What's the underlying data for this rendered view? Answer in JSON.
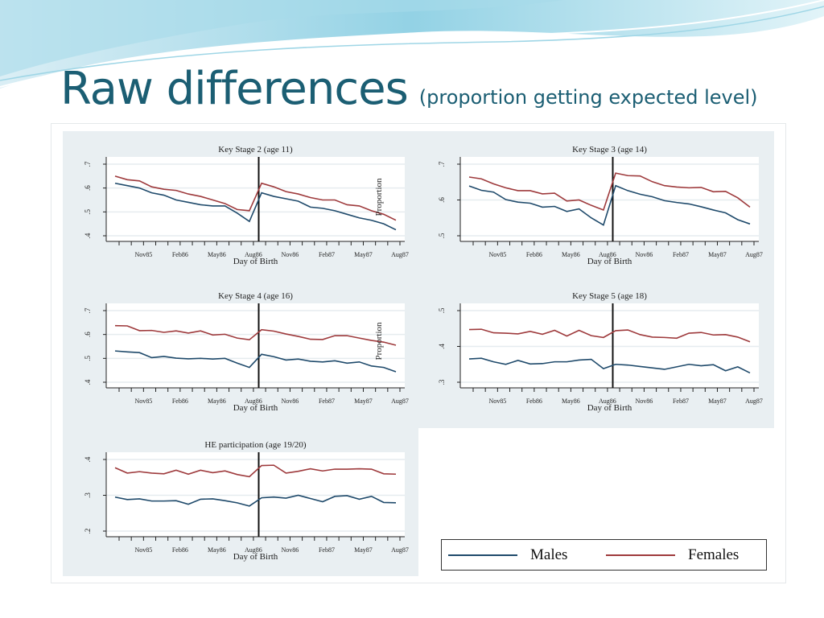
{
  "slide": {
    "title": "Raw differences",
    "subtitle": "(proportion getting expected level)"
  },
  "legend": {
    "males": "Males",
    "females": "Females"
  },
  "colors": {
    "males": "#1f4a6b",
    "females": "#9e3a3c",
    "title": "#1b5e73",
    "panel": "#e9eff2"
  },
  "chart_data": [
    {
      "type": "line",
      "title": "Key Stage 2 (age 11)",
      "xlabel": "Day of Birth",
      "stray_label": "Proportion",
      "x": [
        "Sep85",
        "Oct85",
        "Nov85",
        "Dec85",
        "Jan86",
        "Feb86",
        "Mar86",
        "Apr86",
        "May86",
        "Jun86",
        "Jul86",
        "Aug86",
        "Sep86",
        "Oct86",
        "Nov86",
        "Dec86",
        "Jan87",
        "Feb87",
        "Mar87",
        "Apr87",
        "May87",
        "Jun87",
        "Jul87",
        "Aug87"
      ],
      "xticklabels": [
        "Nov85",
        "Feb86",
        "May86",
        "Aug86",
        "Nov86",
        "Feb87",
        "May87",
        "Aug87"
      ],
      "yticks": [
        0.4,
        0.5,
        0.6,
        0.7
      ],
      "yticklabels": [
        ".4",
        ".5",
        ".6",
        ".7"
      ],
      "ylim": [
        0.4,
        0.7
      ],
      "cutoff": "between Aug86 and Sep86",
      "series": [
        {
          "name": "Males",
          "values": [
            0.62,
            0.61,
            0.6,
            0.58,
            0.57,
            0.55,
            0.54,
            0.53,
            0.525,
            0.525,
            0.495,
            0.46,
            0.58,
            0.565,
            0.555,
            0.545,
            0.52,
            0.515,
            0.505,
            0.49,
            0.475,
            0.465,
            0.45,
            0.425
          ]
        },
        {
          "name": "Females",
          "values": [
            0.65,
            0.635,
            0.63,
            0.605,
            0.595,
            0.59,
            0.575,
            0.565,
            0.55,
            0.535,
            0.51,
            0.505,
            0.62,
            0.605,
            0.585,
            0.575,
            0.56,
            0.55,
            0.55,
            0.53,
            0.525,
            0.505,
            0.49,
            0.465
          ]
        }
      ]
    },
    {
      "type": "line",
      "title": "Key Stage 3 (age 14)",
      "xlabel": "Day of Birth",
      "stray_label": "",
      "x": [
        "Sep85",
        "Oct85",
        "Nov85",
        "Dec85",
        "Jan86",
        "Feb86",
        "Mar86",
        "Apr86",
        "May86",
        "Jun86",
        "Jul86",
        "Aug86",
        "Sep86",
        "Oct86",
        "Nov86",
        "Dec86",
        "Jan87",
        "Feb87",
        "Mar87",
        "Apr87",
        "May87",
        "Jun87",
        "Jul87",
        "Aug87"
      ],
      "xticklabels": [
        "Nov85",
        "Feb86",
        "May86",
        "Aug86",
        "Nov86",
        "Feb87",
        "May87",
        "Aug87"
      ],
      "yticks": [
        0.5,
        0.6,
        0.7
      ],
      "yticklabels": [
        ".5",
        ".6",
        ".7"
      ],
      "ylim": [
        0.5,
        0.7
      ],
      "cutoff": "between Aug86 and Sep86",
      "series": [
        {
          "name": "Males",
          "values": [
            0.639,
            0.627,
            0.622,
            0.601,
            0.594,
            0.591,
            0.58,
            0.582,
            0.568,
            0.575,
            0.55,
            0.53,
            0.64,
            0.626,
            0.616,
            0.609,
            0.598,
            0.593,
            0.589,
            0.581,
            0.572,
            0.564,
            0.545,
            0.533
          ]
        },
        {
          "name": "Females",
          "values": [
            0.664,
            0.659,
            0.645,
            0.634,
            0.626,
            0.626,
            0.617,
            0.619,
            0.597,
            0.6,
            0.585,
            0.572,
            0.675,
            0.668,
            0.667,
            0.651,
            0.64,
            0.636,
            0.634,
            0.635,
            0.623,
            0.624,
            0.606,
            0.58
          ]
        }
      ]
    },
    {
      "type": "line",
      "title": "Key Stage 4 (age 16)",
      "xlabel": "Day of Birth",
      "stray_label": "Proportion",
      "x": [
        "Sep85",
        "Oct85",
        "Nov85",
        "Dec85",
        "Jan86",
        "Feb86",
        "Mar86",
        "Apr86",
        "May86",
        "Jun86",
        "Jul86",
        "Aug86",
        "Sep86",
        "Oct86",
        "Nov86",
        "Dec86",
        "Jan87",
        "Feb87",
        "Mar87",
        "Apr87",
        "May87",
        "Jun87",
        "Jul87",
        "Aug87"
      ],
      "xticklabels": [
        "Nov85",
        "Feb86",
        "May86",
        "Aug86",
        "Nov86",
        "Feb87",
        "May87",
        "Aug87"
      ],
      "yticks": [
        0.4,
        0.5,
        0.6,
        0.7
      ],
      "yticklabels": [
        ".4",
        ".5",
        ".6",
        ".7"
      ],
      "ylim": [
        0.4,
        0.7
      ],
      "cutoff": "between Aug86 and Sep86",
      "series": [
        {
          "name": "Males",
          "values": [
            0.531,
            0.527,
            0.524,
            0.503,
            0.508,
            0.501,
            0.498,
            0.5,
            0.497,
            0.5,
            0.48,
            0.462,
            0.517,
            0.507,
            0.493,
            0.497,
            0.488,
            0.485,
            0.49,
            0.48,
            0.485,
            0.468,
            0.462,
            0.444
          ]
        },
        {
          "name": "Females",
          "values": [
            0.637,
            0.636,
            0.616,
            0.617,
            0.609,
            0.615,
            0.606,
            0.615,
            0.598,
            0.601,
            0.585,
            0.578,
            0.62,
            0.614,
            0.602,
            0.592,
            0.58,
            0.579,
            0.595,
            0.595,
            0.585,
            0.575,
            0.568,
            0.555
          ]
        }
      ]
    },
    {
      "type": "line",
      "title": "Key Stage 5 (age 18)",
      "xlabel": "Day of Birth",
      "stray_label": "",
      "x": [
        "Sep85",
        "Oct85",
        "Nov85",
        "Dec85",
        "Jan86",
        "Feb86",
        "Mar86",
        "Apr86",
        "May86",
        "Jun86",
        "Jul86",
        "Aug86",
        "Sep86",
        "Oct86",
        "Nov86",
        "Dec86",
        "Jan87",
        "Feb87",
        "Mar87",
        "Apr87",
        "May87",
        "Jun87",
        "Jul87",
        "Aug87"
      ],
      "xticklabels": [
        "Nov85",
        "Feb86",
        "May86",
        "Aug86",
        "Nov86",
        "Feb87",
        "May87",
        "Aug87"
      ],
      "yticks": [
        0.3,
        0.4,
        0.5
      ],
      "yticklabels": [
        ".3",
        ".4",
        ".5"
      ],
      "ylim": [
        0.3,
        0.5
      ],
      "cutoff": "between Aug86 and Sep86",
      "series": [
        {
          "name": "Males",
          "values": [
            0.365,
            0.367,
            0.357,
            0.35,
            0.361,
            0.351,
            0.352,
            0.357,
            0.357,
            0.362,
            0.364,
            0.338,
            0.35,
            0.348,
            0.344,
            0.34,
            0.336,
            0.343,
            0.35,
            0.346,
            0.349,
            0.332,
            0.343,
            0.326
          ]
        },
        {
          "name": "Females",
          "values": [
            0.447,
            0.448,
            0.438,
            0.437,
            0.435,
            0.442,
            0.434,
            0.445,
            0.429,
            0.445,
            0.43,
            0.425,
            0.444,
            0.446,
            0.433,
            0.426,
            0.425,
            0.423,
            0.437,
            0.439,
            0.432,
            0.433,
            0.426,
            0.413
          ]
        }
      ]
    },
    {
      "type": "line",
      "title": "HE participation (age 19/20)",
      "xlabel": "Day of Birth",
      "stray_label": "",
      "x": [
        "Sep85",
        "Oct85",
        "Nov85",
        "Dec85",
        "Jan86",
        "Feb86",
        "Mar86",
        "Apr86",
        "May86",
        "Jun86",
        "Jul86",
        "Aug86",
        "Sep86",
        "Oct86",
        "Nov86",
        "Dec86",
        "Jan87",
        "Feb87",
        "Mar87",
        "Apr87",
        "May87",
        "Jun87",
        "Jul87",
        "Aug87"
      ],
      "xticklabels": [
        "Nov85",
        "Feb86",
        "May86",
        "Aug86",
        "Nov86",
        "Feb87",
        "May87",
        "Aug87"
      ],
      "yticks": [
        0.2,
        0.3,
        0.4
      ],
      "yticklabels": [
        ".2",
        ".3",
        ".4"
      ],
      "ylim": [
        0.2,
        0.4
      ],
      "cutoff": "between Aug86 and Sep86",
      "series": [
        {
          "name": "Males",
          "values": [
            0.295,
            0.288,
            0.29,
            0.284,
            0.284,
            0.285,
            0.275,
            0.289,
            0.29,
            0.285,
            0.279,
            0.27,
            0.293,
            0.295,
            0.292,
            0.3,
            0.291,
            0.282,
            0.297,
            0.299,
            0.289,
            0.297,
            0.28,
            0.279
          ]
        },
        {
          "name": "Females",
          "values": [
            0.377,
            0.362,
            0.366,
            0.362,
            0.36,
            0.37,
            0.359,
            0.37,
            0.363,
            0.368,
            0.358,
            0.352,
            0.383,
            0.384,
            0.362,
            0.367,
            0.374,
            0.368,
            0.373,
            0.373,
            0.374,
            0.373,
            0.36,
            0.359
          ]
        }
      ]
    }
  ]
}
